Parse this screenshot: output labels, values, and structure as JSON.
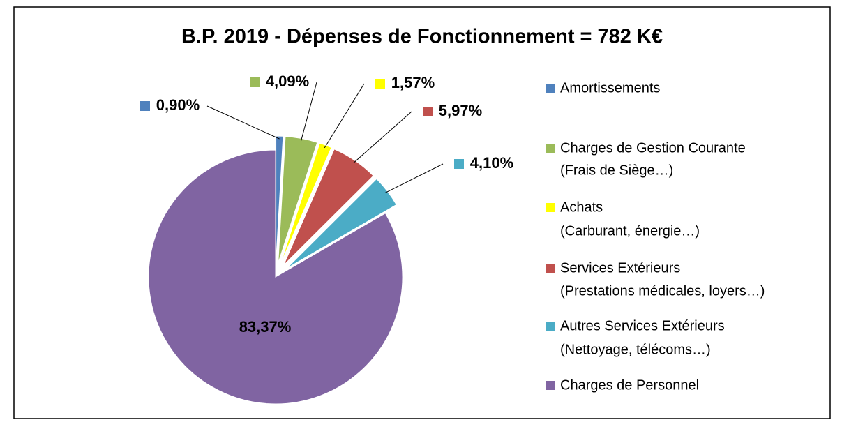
{
  "chart_data": {
    "type": "pie",
    "title": "B.P. 2019 - Dépenses de Fonctionnement = 782 K€",
    "categories": [
      [
        "Amortissements"
      ],
      [
        "Charges de Gestion Courante",
        "(Frais de Siège…)"
      ],
      [
        "Achats",
        "(Carburant, énergie…)"
      ],
      [
        "Services Extérieurs",
        "(Prestations médicales, loyers…)"
      ],
      [
        "Autres Services Extérieurs",
        "(Nettoyage, télécoms…)"
      ],
      [
        "Charges de Personnel"
      ]
    ],
    "values": [
      0.9,
      4.09,
      1.57,
      5.97,
      4.1,
      83.37
    ],
    "value_labels": [
      "0,90%",
      "4,09%",
      "1,57%",
      "5,97%",
      "4,10%",
      "83,37%"
    ],
    "colors": [
      "#4f81bd",
      "#9bbb59",
      "#ffff00",
      "#c0504d",
      "#4bacc6",
      "#8064a2"
    ],
    "legend": "right"
  }
}
